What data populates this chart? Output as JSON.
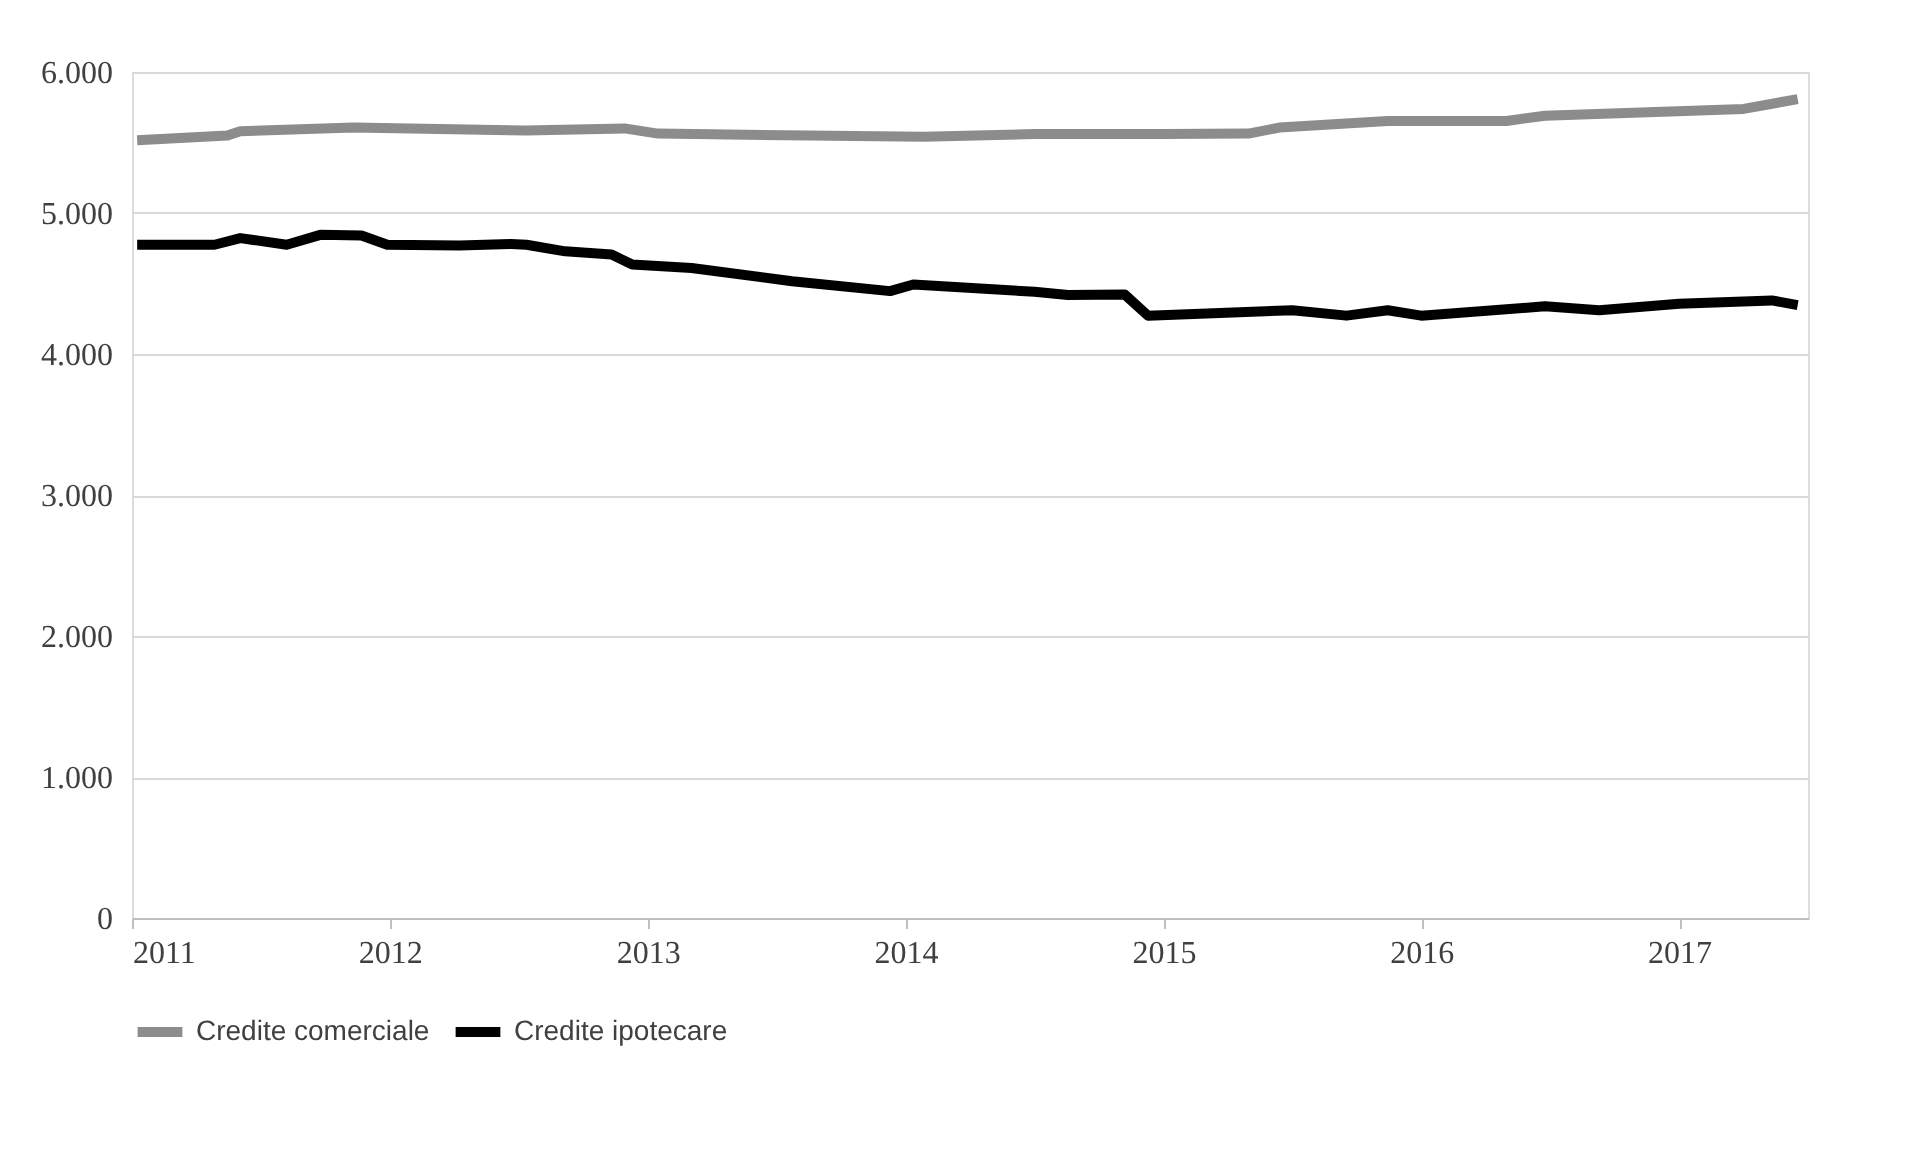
{
  "chart_data": {
    "type": "line",
    "legend": "bottom",
    "grid": "y",
    "line_style": "solid",
    "marker": "none",
    "xlim": [
      2011,
      2017.5
    ],
    "xticks": [
      2011,
      2012,
      2013,
      2014,
      2015,
      2016,
      2017
    ],
    "ylim": [
      0,
      6000
    ],
    "yticks": [
      {
        "value": 0,
        "label": "0"
      },
      {
        "value": 1000,
        "label": "1.000"
      },
      {
        "value": 2000,
        "label": "2.000"
      },
      {
        "value": 3000,
        "label": "3.000"
      },
      {
        "value": 4000,
        "label": "4.000"
      },
      {
        "value": 5000,
        "label": "5.000"
      },
      {
        "value": 6000,
        "label": "6.000"
      }
    ],
    "series": [
      {
        "name": "Credite comerciale",
        "color": "#8c8c8c",
        "x": [
          2011.02,
          2011.37,
          2011.42,
          2011.86,
          2012.53,
          2012.91,
          2013.04,
          2014.07,
          2014.5,
          2015.0,
          2015.33,
          2015.45,
          2015.87,
          2016.33,
          2016.48,
          2017.25,
          2017.46
        ],
        "values": [
          5516,
          5549,
          5580,
          5606,
          5585,
          5600,
          5563,
          5540,
          5560,
          5560,
          5563,
          5606,
          5653,
          5653,
          5690,
          5738,
          5808
        ]
      },
      {
        "name": "Credite ipotecare",
        "color": "#000000",
        "x": [
          2011.02,
          2011.32,
          2011.42,
          2011.6,
          2011.73,
          2011.89,
          2011.99,
          2012.27,
          2012.47,
          2012.53,
          2012.68,
          2012.86,
          2012.94,
          2013.17,
          2013.56,
          2013.94,
          2014.03,
          2014.5,
          2014.63,
          2014.85,
          2014.94,
          2015.5,
          2015.71,
          2015.87,
          2016.0,
          2016.48,
          2016.69,
          2017.0,
          2017.36,
          2017.46
        ],
        "values": [
          4775,
          4775,
          4822,
          4775,
          4845,
          4840,
          4775,
          4770,
          4780,
          4775,
          4728,
          4705,
          4634,
          4610,
          4516,
          4446,
          4493,
          4441,
          4418,
          4422,
          4272,
          4310,
          4272,
          4310,
          4272,
          4338,
          4310,
          4357,
          4380,
          4347
        ]
      }
    ]
  }
}
